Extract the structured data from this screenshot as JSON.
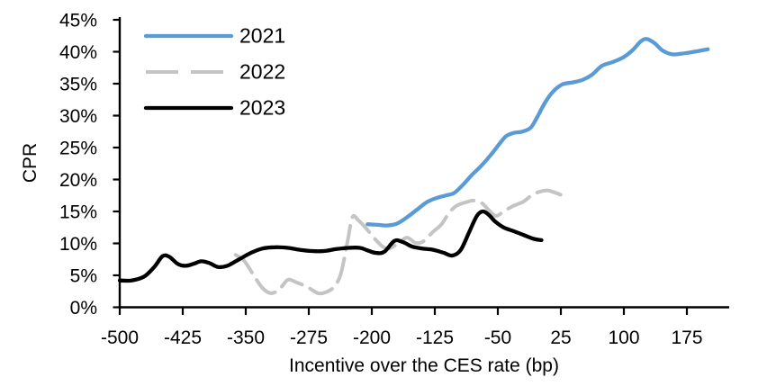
{
  "chart_data": {
    "type": "line",
    "title": "",
    "xlabel": "Incentive over the CES rate (bp)",
    "ylabel": "CPR",
    "grid": false,
    "x_axis": {
      "min": -500,
      "tick_step": 75,
      "ticks": [
        -500,
        -425,
        -350,
        -275,
        -200,
        -125,
        -50,
        25,
        100,
        175
      ],
      "tick_labels": [
        "-500",
        "-425",
        "-350",
        "-275",
        "-200",
        "-125",
        "-50",
        "25",
        "100",
        "175"
      ]
    },
    "y_axis": {
      "min": 0,
      "max": 45,
      "tick_step": 5,
      "ticks": [
        0,
        5,
        10,
        15,
        20,
        25,
        30,
        35,
        40,
        45
      ],
      "tick_labels": [
        "0%",
        "5%",
        "10%",
        "15%",
        "20%",
        "25%",
        "30%",
        "35%",
        "40%",
        "45%"
      ]
    },
    "legend": {
      "position": "top-left",
      "entries": [
        "2021",
        "2022",
        "2023"
      ]
    },
    "series": [
      {
        "name": "2021",
        "color": "#5B9BD5",
        "style": "solid",
        "points": [
          [
            -205,
            13.0
          ],
          [
            -193,
            12.9
          ],
          [
            -182,
            12.8
          ],
          [
            -170,
            13.1
          ],
          [
            -158,
            14.1
          ],
          [
            -146,
            15.3
          ],
          [
            -134,
            16.5
          ],
          [
            -123,
            17.1
          ],
          [
            -112,
            17.5
          ],
          [
            -102,
            17.9
          ],
          [
            -92,
            19.1
          ],
          [
            -81,
            20.7
          ],
          [
            -70,
            22.1
          ],
          [
            -58,
            23.9
          ],
          [
            -48,
            25.6
          ],
          [
            -40,
            26.8
          ],
          [
            -31,
            27.3
          ],
          [
            -21,
            27.5
          ],
          [
            -11,
            28.1
          ],
          [
            -3,
            29.8
          ],
          [
            6,
            32.0
          ],
          [
            16,
            33.8
          ],
          [
            27,
            34.9
          ],
          [
            39,
            35.2
          ],
          [
            51,
            35.6
          ],
          [
            62,
            36.4
          ],
          [
            74,
            37.8
          ],
          [
            87,
            38.4
          ],
          [
            99,
            39.1
          ],
          [
            110,
            40.2
          ],
          [
            120,
            41.6
          ],
          [
            127,
            42.0
          ],
          [
            136,
            41.4
          ],
          [
            146,
            40.2
          ],
          [
            157,
            39.6
          ],
          [
            169,
            39.7
          ],
          [
            184,
            40.0
          ],
          [
            200,
            40.4
          ]
        ]
      },
      {
        "name": "2022",
        "color": "#C4C4C4",
        "style": "dashed",
        "points": [
          [
            -362,
            8.2
          ],
          [
            -352,
            7.3
          ],
          [
            -341,
            5.1
          ],
          [
            -330,
            3.0
          ],
          [
            -320,
            2.2
          ],
          [
            -310,
            2.8
          ],
          [
            -300,
            4.3
          ],
          [
            -290,
            3.9
          ],
          [
            -277,
            3.2
          ],
          [
            -264,
            2.2
          ],
          [
            -254,
            2.4
          ],
          [
            -245,
            3.2
          ],
          [
            -237,
            5.2
          ],
          [
            -229,
            10.2
          ],
          [
            -223,
            14.1
          ],
          [
            -216,
            13.6
          ],
          [
            -207,
            12.4
          ],
          [
            -197,
            10.8
          ],
          [
            -187,
            9.5
          ],
          [
            -179,
            9.2
          ],
          [
            -168,
            10.1
          ],
          [
            -158,
            10.9
          ],
          [
            -148,
            10.1
          ],
          [
            -139,
            10.3
          ],
          [
            -128,
            11.7
          ],
          [
            -117,
            13.0
          ],
          [
            -108,
            14.8
          ],
          [
            -99,
            15.9
          ],
          [
            -89,
            16.4
          ],
          [
            -79,
            16.7
          ],
          [
            -69,
            16.3
          ],
          [
            -60,
            15.1
          ],
          [
            -52,
            14.3
          ],
          [
            -42,
            15.1
          ],
          [
            -31,
            15.9
          ],
          [
            -20,
            16.5
          ],
          [
            -10,
            17.5
          ],
          [
            0,
            18.1
          ],
          [
            9,
            18.3
          ],
          [
            17,
            18.0
          ],
          [
            25,
            17.6
          ]
        ]
      },
      {
        "name": "2023",
        "color": "#000000",
        "style": "solid",
        "points": [
          [
            -500,
            4.2
          ],
          [
            -486,
            4.2
          ],
          [
            -471,
            4.8
          ],
          [
            -459,
            6.3
          ],
          [
            -449,
            8.0
          ],
          [
            -441,
            7.9
          ],
          [
            -431,
            6.8
          ],
          [
            -422,
            6.5
          ],
          [
            -412,
            6.8
          ],
          [
            -403,
            7.2
          ],
          [
            -393,
            6.9
          ],
          [
            -383,
            6.3
          ],
          [
            -372,
            6.5
          ],
          [
            -358,
            7.5
          ],
          [
            -344,
            8.5
          ],
          [
            -330,
            9.2
          ],
          [
            -315,
            9.4
          ],
          [
            -300,
            9.3
          ],
          [
            -286,
            9.0
          ],
          [
            -271,
            8.8
          ],
          [
            -257,
            8.8
          ],
          [
            -243,
            9.1
          ],
          [
            -228,
            9.3
          ],
          [
            -214,
            9.3
          ],
          [
            -205,
            8.9
          ],
          [
            -195,
            8.5
          ],
          [
            -185,
            8.7
          ],
          [
            -173,
            10.4
          ],
          [
            -163,
            10.2
          ],
          [
            -152,
            9.5
          ],
          [
            -140,
            9.2
          ],
          [
            -127,
            9.0
          ],
          [
            -114,
            8.5
          ],
          [
            -104,
            8.1
          ],
          [
            -94,
            9.0
          ],
          [
            -84,
            11.8
          ],
          [
            -75,
            14.3
          ],
          [
            -68,
            15.0
          ],
          [
            -61,
            14.5
          ],
          [
            -53,
            13.4
          ],
          [
            -43,
            12.5
          ],
          [
            -31,
            11.9
          ],
          [
            -19,
            11.3
          ],
          [
            -7,
            10.7
          ],
          [
            2,
            10.5
          ]
        ]
      }
    ]
  },
  "colors": {
    "axis": "#000000",
    "text": "#000000",
    "background": "#ffffff",
    "series_2021": "#5B9BD5",
    "series_2022": "#C4C4C4",
    "series_2023": "#000000"
  }
}
